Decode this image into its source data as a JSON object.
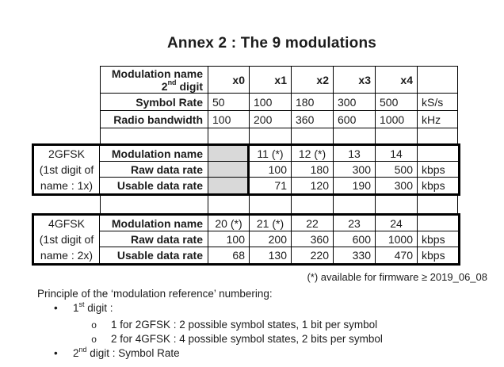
{
  "title": "Annex 2 : The 9 modulations",
  "table": {
    "header": {
      "label_line1": "Modulation name",
      "label_line2_base": "2",
      "label_line2_sup": "nd",
      "label_line2_rest": " digit",
      "cols": [
        "x0",
        "x1",
        "x2",
        "x3",
        "x4"
      ]
    },
    "top_rows": [
      {
        "label": "Symbol Rate",
        "values": [
          "50",
          "100",
          "180",
          "300",
          "500"
        ],
        "unit": "kS/s"
      },
      {
        "label": "Radio bandwidth",
        "values": [
          "100",
          "200",
          "360",
          "600",
          "1000"
        ],
        "unit": "kHz"
      }
    ],
    "blocks": [
      {
        "side": [
          "2GFSK",
          "(1st digit of",
          "name : 1x)"
        ],
        "rows": [
          {
            "label": "Modulation name",
            "values": [
              "",
              "11 (*)",
              "12 (*)",
              "13",
              "14"
            ],
            "unit": ""
          },
          {
            "label": "Raw data rate",
            "values": [
              "",
              "100",
              "180",
              "300",
              "500"
            ],
            "unit": "kbps"
          },
          {
            "label": "Usable data rate",
            "values": [
              "",
              "71",
              "120",
              "190",
              "300"
            ],
            "unit": "kbps"
          }
        ]
      },
      {
        "side": [
          "4GFSK",
          "(1st digit of",
          "name : 2x)"
        ],
        "rows": [
          {
            "label": "Modulation name",
            "values": [
              "20 (*)",
              "21 (*)",
              "22",
              "23",
              "24"
            ],
            "unit": ""
          },
          {
            "label": "Raw data rate",
            "values": [
              "100",
              "200",
              "360",
              "600",
              "1000"
            ],
            "unit": "kbps"
          },
          {
            "label": "Usable data rate",
            "values": [
              "68",
              "130",
              "220",
              "330",
              "470"
            ],
            "unit": "kbps"
          }
        ]
      }
    ]
  },
  "footnote": "(*) available for firmware ≥ 2019_06_08",
  "notes": {
    "intro": "Principle of the ‘modulation reference’ numbering:",
    "bullets": [
      {
        "marker": "•",
        "base": "1",
        "sup": "st",
        "rest": " digit :"
      },
      {
        "marker": "•",
        "base": "2",
        "sup": "nd",
        "rest": " digit : Symbol Rate"
      }
    ],
    "subbullets": [
      {
        "marker": "o",
        "text": "1 for 2GFSK : 2 possible symbol states, 1 bit per symbol"
      },
      {
        "marker": "o",
        "text": "2 for 4GFSK : 4 possible symbol states, 2 bits per symbol"
      }
    ]
  },
  "colors": {
    "shaded_cell": "#d9d9d9",
    "border": "#000000",
    "text": "#1c1c1c",
    "background": "#ffffff"
  }
}
